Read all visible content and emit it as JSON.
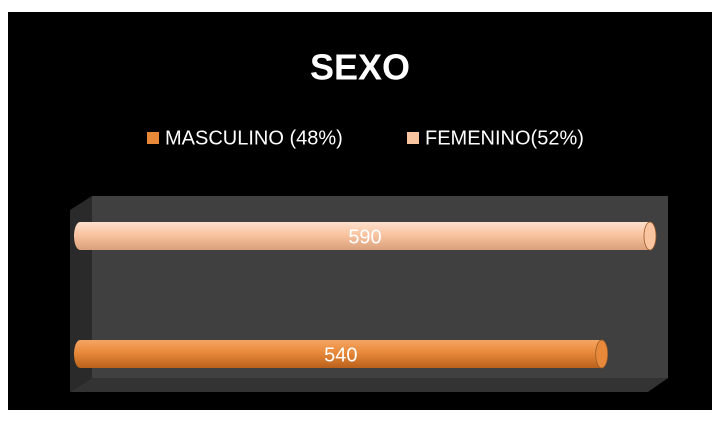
{
  "chart_data": {
    "type": "bar",
    "orientation": "horizontal",
    "title": "SEXO",
    "categories": [
      null
    ],
    "series": [
      {
        "name": "MASCULINO (48%)",
        "color": "#e8893a",
        "values": [
          540
        ]
      },
      {
        "name": "FEMENINO(52%)",
        "color": "#f9c4a0",
        "values": [
          590
        ]
      }
    ],
    "legend": "top"
  }
}
